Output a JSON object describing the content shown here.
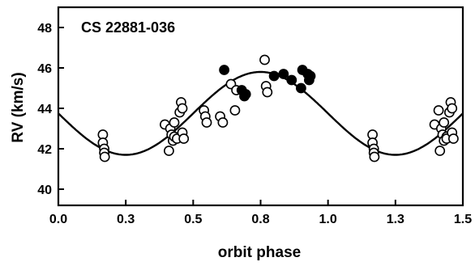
{
  "chart_data": {
    "type": "scatter",
    "title": "CS 22881-036",
    "xlabel": "orbit phase",
    "ylabel": "RV (km/s)",
    "xlim": [
      0.0,
      1.5
    ],
    "ylim": [
      39.2,
      49.0
    ],
    "x_ticks": [
      "0.0",
      "0.3",
      "0.5",
      "0.8",
      "1.0",
      "1.3",
      "1.5"
    ],
    "x_tick_values": [
      0.0,
      0.25,
      0.5,
      0.75,
      1.0,
      1.25,
      1.5
    ],
    "y_ticks": [
      "40",
      "42",
      "44",
      "46",
      "48"
    ],
    "y_tick_values": [
      40,
      42,
      44,
      46,
      48
    ],
    "grid": false,
    "series": [
      {
        "marker": "open-circle",
        "points": [
          [
            0.165,
            42.7
          ],
          [
            0.165,
            42.3
          ],
          [
            0.17,
            42.0
          ],
          [
            0.17,
            41.8
          ],
          [
            0.172,
            41.6
          ],
          [
            0.395,
            43.2
          ],
          [
            0.41,
            41.9
          ],
          [
            0.415,
            43.0
          ],
          [
            0.42,
            42.7
          ],
          [
            0.425,
            42.4
          ],
          [
            0.43,
            43.3
          ],
          [
            0.43,
            42.6
          ],
          [
            0.44,
            42.5
          ],
          [
            0.45,
            43.8
          ],
          [
            0.455,
            44.3
          ],
          [
            0.46,
            44.0
          ],
          [
            0.46,
            42.8
          ],
          [
            0.465,
            42.5
          ],
          [
            0.54,
            43.9
          ],
          [
            0.545,
            43.6
          ],
          [
            0.55,
            43.3
          ],
          [
            0.6,
            43.6
          ],
          [
            0.61,
            43.3
          ],
          [
            0.64,
            45.2
          ],
          [
            0.655,
            43.9
          ],
          [
            0.66,
            44.9
          ],
          [
            0.765,
            46.4
          ],
          [
            0.77,
            45.1
          ],
          [
            0.775,
            44.8
          ],
          [
            1.165,
            42.7
          ],
          [
            1.165,
            42.3
          ],
          [
            1.17,
            42.0
          ],
          [
            1.17,
            41.8
          ],
          [
            1.172,
            41.6
          ],
          [
            1.395,
            43.2
          ],
          [
            1.41,
            43.9
          ],
          [
            1.415,
            41.9
          ],
          [
            1.42,
            43.0
          ],
          [
            1.425,
            42.7
          ],
          [
            1.43,
            42.4
          ],
          [
            1.43,
            43.3
          ],
          [
            1.44,
            42.6
          ],
          [
            1.44,
            42.5
          ],
          [
            1.45,
            43.8
          ],
          [
            1.455,
            44.3
          ],
          [
            1.46,
            44.0
          ],
          [
            1.46,
            42.8
          ],
          [
            1.465,
            42.5
          ]
        ]
      },
      {
        "marker": "filled-circle",
        "points": [
          [
            0.615,
            45.9
          ],
          [
            0.68,
            44.9
          ],
          [
            0.69,
            44.6
          ],
          [
            0.695,
            44.7
          ],
          [
            0.8,
            45.6
          ],
          [
            0.835,
            45.7
          ],
          [
            0.865,
            45.4
          ],
          [
            0.9,
            45.0
          ],
          [
            0.905,
            45.9
          ],
          [
            0.925,
            45.7
          ],
          [
            0.93,
            45.4
          ],
          [
            0.935,
            45.6
          ]
        ]
      }
    ],
    "model_curve": {
      "gamma": 43.75,
      "K": 2.05,
      "phase_of_max": 0.75,
      "x_range": [
        0.0,
        1.5
      ]
    }
  }
}
